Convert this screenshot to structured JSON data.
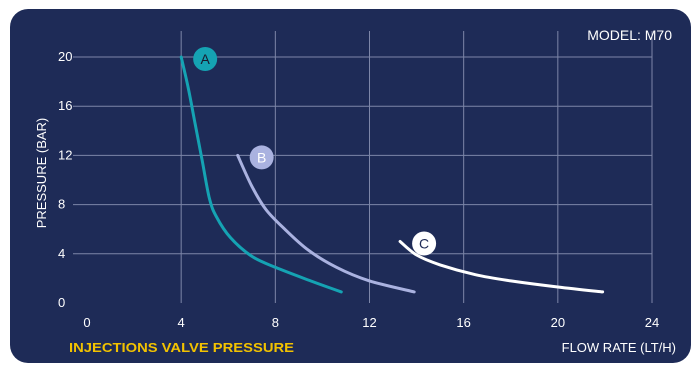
{
  "model_label": "MODEL: M70",
  "caption": "INJECTIONS VALVE PRESSURE",
  "colors": {
    "background": "#1e2b57",
    "grid": "#7d86a8",
    "caption": "#f2c200",
    "text": "#ffffff"
  },
  "chart_data": {
    "type": "line",
    "xlabel": "FLOW RATE (LT/H)",
    "ylabel": "PRESSURE (BAR)",
    "xlim": [
      0,
      24
    ],
    "ylim": [
      0,
      20
    ],
    "xticks": [
      0,
      4,
      8,
      12,
      16,
      20,
      24
    ],
    "yticks": [
      0,
      4,
      8,
      12,
      16,
      20
    ],
    "xtick_labels": [
      "0",
      "4",
      "8",
      "12",
      "16",
      "20",
      "24"
    ],
    "ytick_labels": [
      "0",
      "4",
      "8",
      "12",
      "16",
      "20"
    ],
    "grid": true,
    "series": [
      {
        "name": "A",
        "color": "#15a3b3",
        "label_color": "#1a1a2e",
        "x": [
          4.0,
          4.3,
          4.6,
          4.9,
          5.2,
          5.5,
          6.1,
          7.0,
          8.0,
          9.5,
          10.8
        ],
        "y": [
          20.0,
          17.5,
          14.5,
          11.5,
          8.5,
          7.0,
          5.3,
          3.8,
          2.9,
          1.8,
          0.9
        ]
      },
      {
        "name": "B",
        "color": "#aab2e0",
        "label_color": "#ffffff",
        "x": [
          6.4,
          7.0,
          7.6,
          8.4,
          9.4,
          10.6,
          12.0,
          13.9
        ],
        "y": [
          12.0,
          9.5,
          7.6,
          6.0,
          4.3,
          2.9,
          1.8,
          0.9
        ]
      },
      {
        "name": "C",
        "color": "#ffffff",
        "label_color": "#1e2b57",
        "x": [
          13.3,
          14.0,
          15.0,
          16.5,
          18.0,
          20.0,
          21.9
        ],
        "y": [
          5.0,
          3.9,
          3.1,
          2.3,
          1.8,
          1.3,
          0.9
        ]
      }
    ]
  }
}
